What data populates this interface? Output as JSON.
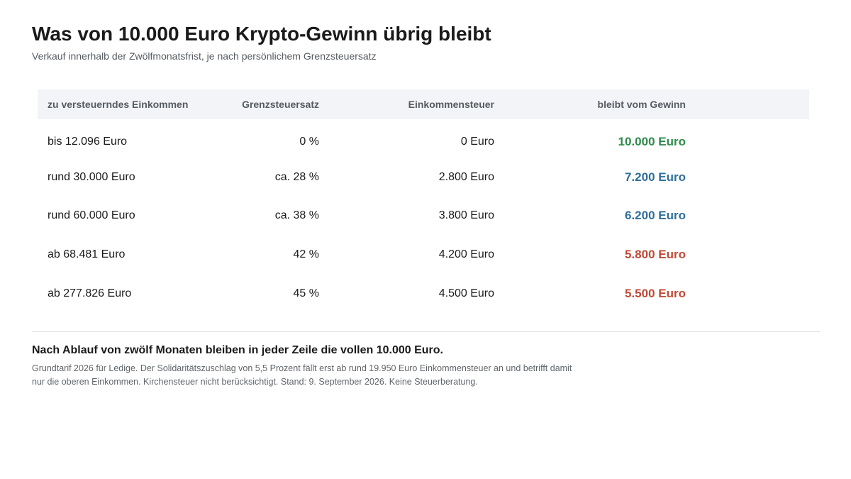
{
  "header": {
    "title": "Was von 10.000 Euro Krypto-Gewinn übrig bleibt",
    "subtitle": "Verkauf innerhalb der Zwölfmonatsfrist, je nach persönlichem Grenzsteuersatz"
  },
  "table": {
    "columns": [
      "zu versteuerndes Einkommen",
      "Grenzsteuersatz",
      "Einkommensteuer",
      "bleibt vom Gewinn"
    ],
    "rows": [
      {
        "income": "bis 12.096 Euro",
        "rate": "0 %",
        "tax": "0 Euro",
        "remaining": "10.000 Euro",
        "remaining_color": "#2e8b4a"
      },
      {
        "income": "rund 30.000 Euro",
        "rate": "ca. 28 %",
        "tax": "2.800 Euro",
        "remaining": "7.200 Euro",
        "remaining_color": "#2f6f9a"
      },
      {
        "income": "rund 60.000 Euro",
        "rate": "ca. 38 %",
        "tax": "3.800 Euro",
        "remaining": "6.200 Euro",
        "remaining_color": "#2f6f9a"
      },
      {
        "income": "ab 68.481 Euro",
        "rate": "42 %",
        "tax": "4.200 Euro",
        "remaining": "5.800 Euro",
        "remaining_color": "#c04a37"
      },
      {
        "income": "ab 277.826 Euro",
        "rate": "45 %",
        "tax": "4.500 Euro",
        "remaining": "5.500 Euro",
        "remaining_color": "#c04a37"
      }
    ]
  },
  "footer": {
    "note": "Nach Ablauf von zwölf Monaten bleiben in jeder Zeile die vollen 10.000 Euro.",
    "footnote": "Grundtarif 2026 für Ledige. Der Solidaritätszuschlag von 5,5 Prozent fällt erst ab rund 19.950 Euro Einkommensteuer an und betrifft damit nur die oberen Einkommen. Kirchensteuer nicht berücksichtigt. Stand: 9. September 2026. Keine Steuerberatung."
  }
}
